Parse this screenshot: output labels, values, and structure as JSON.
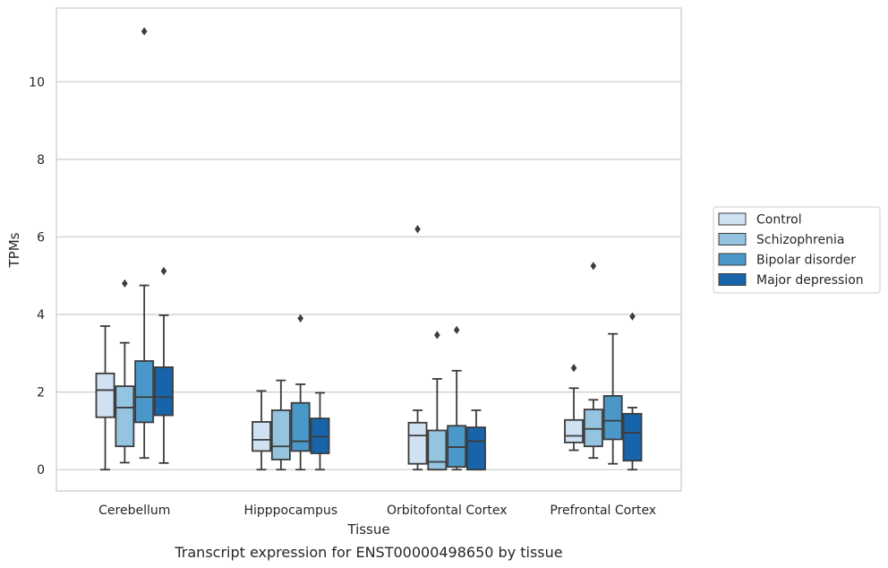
{
  "chart_data": {
    "type": "box",
    "caption": "Transcript expression for ENST00000498650 by tissue",
    "xlabel": "Tissue",
    "ylabel": "TPMs",
    "ylim": [
      -0.55,
      11.9
    ],
    "yticks": [
      0,
      2,
      4,
      6,
      8,
      10
    ],
    "grid": true,
    "legend_position": "right",
    "categories": [
      "Cerebellum",
      "Hipppocampus",
      "Orbitofontal Cortex",
      "Prefrontal Cortex"
    ],
    "series": [
      {
        "name": "Control",
        "color": "#d0e1f2",
        "boxes": [
          {
            "whislo": 0.0,
            "q1": 1.35,
            "med": 2.05,
            "q3": 2.48,
            "whishi": 3.7,
            "fliers": []
          },
          {
            "whislo": 0.0,
            "q1": 0.48,
            "med": 0.77,
            "q3": 1.23,
            "whishi": 2.03,
            "fliers": []
          },
          {
            "whislo": 0.0,
            "q1": 0.15,
            "med": 0.88,
            "q3": 1.21,
            "whishi": 1.53,
            "fliers": [
              6.2
            ]
          },
          {
            "whislo": 0.5,
            "q1": 0.7,
            "med": 0.87,
            "q3": 1.28,
            "whishi": 2.1,
            "fliers": [
              2.62
            ]
          }
        ]
      },
      {
        "name": "Schizophrenia",
        "color": "#94c4df",
        "boxes": [
          {
            "whislo": 0.18,
            "q1": 0.6,
            "med": 1.6,
            "q3": 2.15,
            "whishi": 3.27,
            "fliers": [
              4.8
            ]
          },
          {
            "whislo": 0.0,
            "q1": 0.26,
            "med": 0.6,
            "q3": 1.53,
            "whishi": 2.3,
            "fliers": []
          },
          {
            "whislo": 0.0,
            "q1": 0.0,
            "med": 0.2,
            "q3": 1.01,
            "whishi": 2.34,
            "fliers": [
              3.47
            ]
          },
          {
            "whislo": 0.3,
            "q1": 0.6,
            "med": 1.05,
            "q3": 1.55,
            "whishi": 1.8,
            "fliers": [
              5.25
            ]
          }
        ]
      },
      {
        "name": "Bipolar disorder",
        "color": "#4a98c9",
        "boxes": [
          {
            "whislo": 0.3,
            "q1": 1.22,
            "med": 1.87,
            "q3": 2.8,
            "whishi": 4.75,
            "fliers": [
              11.3
            ]
          },
          {
            "whislo": 0.0,
            "q1": 0.48,
            "med": 0.73,
            "q3": 1.72,
            "whishi": 2.2,
            "fliers": [
              3.9
            ]
          },
          {
            "whislo": 0.0,
            "q1": 0.07,
            "med": 0.58,
            "q3": 1.13,
            "whishi": 2.55,
            "fliers": [
              3.6
            ]
          },
          {
            "whislo": 0.15,
            "q1": 0.78,
            "med": 1.26,
            "q3": 1.9,
            "whishi": 3.5,
            "fliers": []
          }
        ]
      },
      {
        "name": "Major depression",
        "color": "#1764ab",
        "boxes": [
          {
            "whislo": 0.17,
            "q1": 1.4,
            "med": 1.87,
            "q3": 2.64,
            "whishi": 3.98,
            "fliers": [
              5.12
            ]
          },
          {
            "whislo": 0.0,
            "q1": 0.42,
            "med": 0.85,
            "q3": 1.32,
            "whishi": 1.98,
            "fliers": []
          },
          {
            "whislo": 0.0,
            "q1": 0.0,
            "med": 0.73,
            "q3": 1.09,
            "whishi": 1.53,
            "fliers": []
          },
          {
            "whislo": 0.0,
            "q1": 0.23,
            "med": 0.95,
            "q3": 1.44,
            "whishi": 1.6,
            "fliers": [
              3.95
            ]
          }
        ]
      }
    ]
  }
}
